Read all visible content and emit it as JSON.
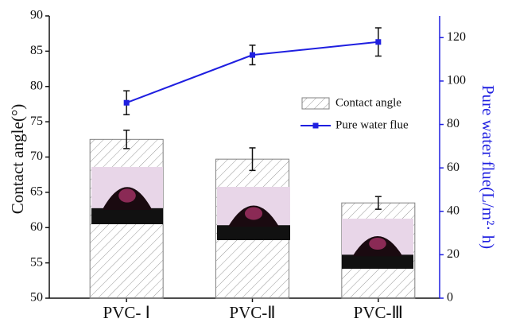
{
  "chart_data": {
    "type": "bar",
    "categories": [
      "PVC- Ⅰ",
      "PVC-Ⅱ",
      "PVC-Ⅲ"
    ],
    "ylabel": "Contact angle(°)",
    "y2label": "Pure water flue(L/m²· h)",
    "ylim": [
      50,
      90
    ],
    "yticks": [
      50,
      55,
      60,
      65,
      70,
      75,
      80,
      85,
      90
    ],
    "y2lim": [
      0,
      130
    ],
    "y2ticks": [
      0,
      20,
      40,
      60,
      80,
      100,
      120
    ],
    "legend": "upper right",
    "series": [
      {
        "name": "Contact angle",
        "type": "bar",
        "color": "#808080",
        "values": [
          72.5,
          69.7,
          63.5
        ],
        "errors": [
          1.3,
          1.6,
          0.9
        ]
      },
      {
        "name": "Pure water flue",
        "type": "line",
        "axis": "y2",
        "color": "#1f1fe0",
        "values": [
          90,
          112,
          118
        ],
        "errors": [
          5.5,
          4.5,
          6.5
        ]
      }
    ]
  }
}
